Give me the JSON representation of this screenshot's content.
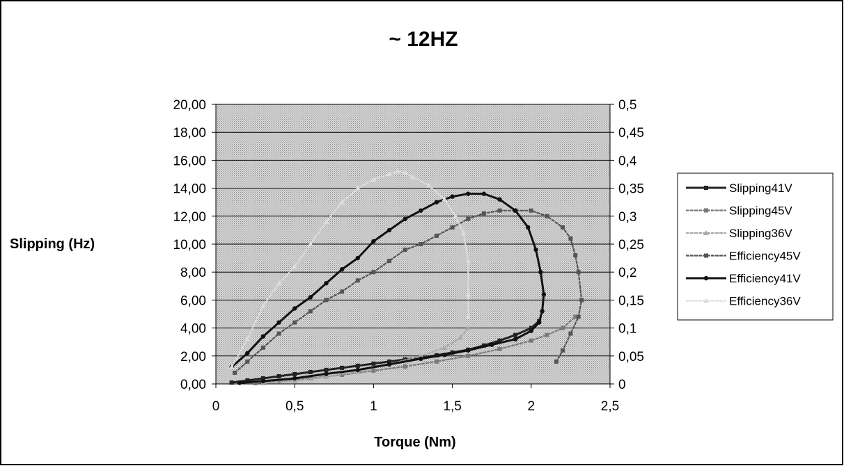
{
  "chart_data": {
    "type": "line",
    "title": "~ 12HZ",
    "xlabel": "Torque (Nm)",
    "ylabel": "Slipping (Hz)",
    "y2label": "",
    "xlim": [
      0,
      2.5
    ],
    "ylim": [
      0,
      20
    ],
    "y2lim": [
      0,
      0.5
    ],
    "x_ticks": [
      "0",
      "0,5",
      "1",
      "1,5",
      "2",
      "2,5"
    ],
    "y_ticks": [
      "0,00",
      "2,00",
      "4,00",
      "6,00",
      "8,00",
      "10,00",
      "12,00",
      "14,00",
      "16,00",
      "18,00",
      "20,00"
    ],
    "y2_ticks": [
      "0",
      "0,05",
      "0,1",
      "0,15",
      "0,2",
      "0,25",
      "0,3",
      "0,35",
      "0,4",
      "0,45",
      "0,5"
    ],
    "grid": true,
    "legend_position": "right",
    "series": [
      {
        "name": "Slipping41V",
        "axis": "left",
        "color": "#222222",
        "style": "solid",
        "marker": "square",
        "x": [
          0.1,
          0.2,
          0.3,
          0.4,
          0.5,
          0.6,
          0.7,
          0.8,
          0.9,
          1.0,
          1.1,
          1.2,
          1.3,
          1.4,
          1.5,
          1.6,
          1.7,
          1.8,
          1.9,
          2.0,
          2.05
        ],
        "y": [
          0.1,
          0.25,
          0.4,
          0.55,
          0.7,
          0.85,
          1.0,
          1.15,
          1.3,
          1.45,
          1.6,
          1.75,
          1.9,
          2.05,
          2.25,
          2.45,
          2.75,
          3.1,
          3.5,
          4.0,
          4.5
        ]
      },
      {
        "name": "Slipping45V",
        "axis": "left",
        "color": "#7a7a7a",
        "style": "hatched",
        "marker": "square",
        "x": [
          0.25,
          0.4,
          0.6,
          0.8,
          1.0,
          1.2,
          1.4,
          1.6,
          1.8,
          2.0,
          2.1,
          2.2,
          2.28
        ],
        "y": [
          0.05,
          0.2,
          0.4,
          0.65,
          0.95,
          1.25,
          1.6,
          2.0,
          2.5,
          3.1,
          3.5,
          4.0,
          4.8
        ]
      },
      {
        "name": "Slipping36V",
        "axis": "left",
        "color": "#aaaaaa",
        "style": "hatched",
        "marker": "triangle",
        "x": [
          0.3,
          0.5,
          0.7,
          0.9,
          1.1,
          1.3,
          1.45,
          1.55,
          1.6
        ],
        "y": [
          0.05,
          0.2,
          0.5,
          0.9,
          1.4,
          2.0,
          2.6,
          3.3,
          4.0
        ]
      },
      {
        "name": "Efficiency45V",
        "axis": "right",
        "color": "#555555",
        "style": "hatched",
        "marker": "square",
        "x": [
          0.12,
          0.2,
          0.3,
          0.4,
          0.5,
          0.6,
          0.7,
          0.8,
          0.9,
          1.0,
          1.1,
          1.2,
          1.3,
          1.4,
          1.5,
          1.6,
          1.7,
          1.8,
          1.9,
          2.0,
          2.1,
          2.2,
          2.25,
          2.28,
          2.3,
          2.32,
          2.3,
          2.25,
          2.2,
          2.16
        ],
        "y": [
          0.02,
          0.04,
          0.065,
          0.09,
          0.11,
          0.13,
          0.15,
          0.165,
          0.185,
          0.2,
          0.22,
          0.24,
          0.25,
          0.265,
          0.28,
          0.295,
          0.305,
          0.31,
          0.31,
          0.31,
          0.3,
          0.28,
          0.26,
          0.23,
          0.2,
          0.15,
          0.12,
          0.09,
          0.06,
          0.04
        ]
      },
      {
        "name": "Efficiency41V",
        "axis": "right",
        "color": "#111111",
        "style": "solid",
        "marker": "circle",
        "x": [
          0.1,
          0.2,
          0.3,
          0.4,
          0.5,
          0.6,
          0.7,
          0.8,
          0.9,
          1.0,
          1.1,
          1.2,
          1.3,
          1.4,
          1.5,
          1.6,
          1.7,
          1.8,
          1.9,
          1.98,
          2.03,
          2.06,
          2.08,
          2.07,
          2.05,
          2.0,
          1.9,
          1.75,
          1.6,
          1.45,
          1.3,
          1.1,
          0.9,
          0.7,
          0.5,
          0.3,
          0.15
        ],
        "y": [
          0.03,
          0.055,
          0.085,
          0.11,
          0.135,
          0.155,
          0.18,
          0.205,
          0.225,
          0.255,
          0.275,
          0.295,
          0.31,
          0.325,
          0.335,
          0.34,
          0.34,
          0.33,
          0.31,
          0.28,
          0.24,
          0.2,
          0.16,
          0.13,
          0.11,
          0.095,
          0.08,
          0.07,
          0.06,
          0.052,
          0.045,
          0.035,
          0.025,
          0.018,
          0.01,
          0.005,
          0.002
        ]
      },
      {
        "name": "Efficiency36V",
        "axis": "right",
        "color": "#dddddd",
        "style": "hatched",
        "marker": "triangle",
        "x": [
          0.1,
          0.2,
          0.3,
          0.4,
          0.5,
          0.6,
          0.7,
          0.8,
          0.9,
          1.0,
          1.1,
          1.15,
          1.2,
          1.25,
          1.35,
          1.45,
          1.52,
          1.57,
          1.6,
          1.6,
          1.6
        ],
        "y": [
          0.03,
          0.08,
          0.14,
          0.18,
          0.21,
          0.25,
          0.29,
          0.325,
          0.35,
          0.365,
          0.375,
          0.38,
          0.378,
          0.37,
          0.355,
          0.33,
          0.3,
          0.27,
          0.22,
          0.16,
          0.12
        ]
      }
    ]
  }
}
